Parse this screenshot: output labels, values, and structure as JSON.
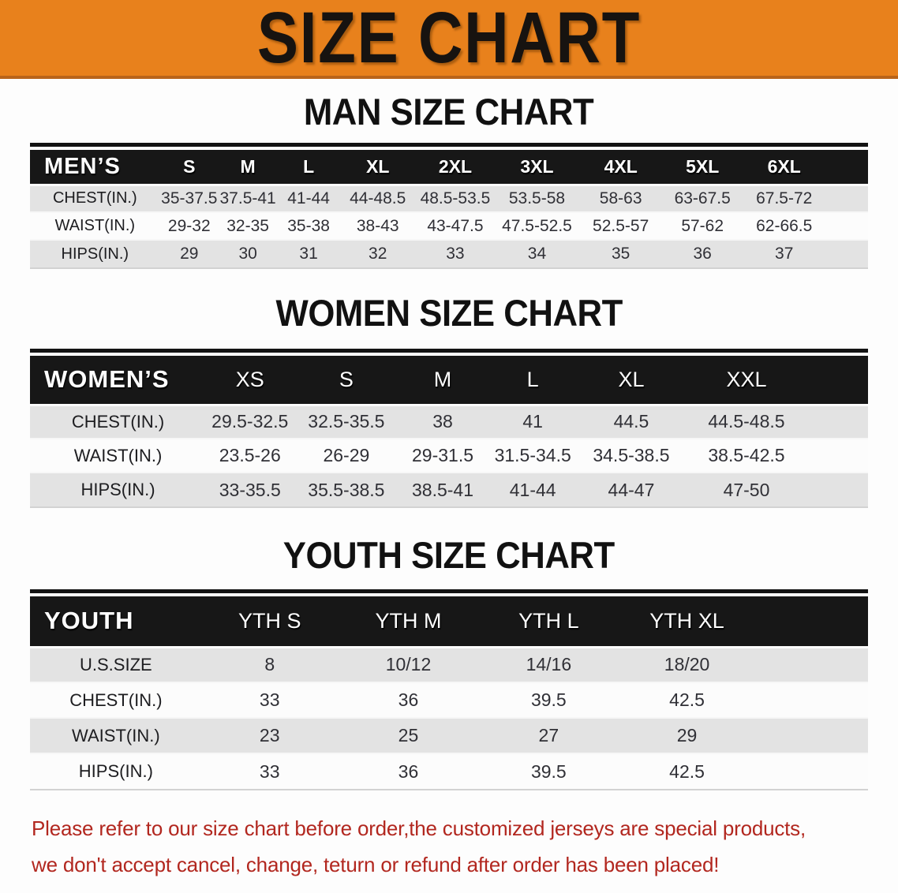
{
  "banner": {
    "title": "SIZE CHART"
  },
  "sections": [
    {
      "id": "men",
      "heading": "MAN SIZE CHART",
      "table": {
        "label": "MEN’S",
        "columns": [
          "S",
          "M",
          "L",
          "XL",
          "2XL",
          "3XL",
          "4XL",
          "5XL",
          "6XL"
        ],
        "rows": [
          {
            "label": "CHEST(IN.)",
            "values": [
              "35-37.5",
              "37.5-41",
              "41-44",
              "44-48.5",
              "48.5-53.5",
              "53.5-58",
              "58-63",
              "63-67.5",
              "67.5-72"
            ]
          },
          {
            "label": "WAIST(IN.)",
            "values": [
              "29-32",
              "32-35",
              "35-38",
              "38-43",
              "43-47.5",
              "47.5-52.5",
              "52.5-57",
              "57-62",
              "62-66.5"
            ]
          },
          {
            "label": "HIPS(IN.)",
            "values": [
              "29",
              "30",
              "31",
              "32",
              "33",
              "34",
              "35",
              "36",
              "37"
            ]
          }
        ]
      }
    },
    {
      "id": "women",
      "heading": "WOMEN SIZE CHART",
      "table": {
        "label": "WOMEN’S",
        "columns": [
          "XS",
          "S",
          "M",
          "L",
          "XL",
          "XXL"
        ],
        "rows": [
          {
            "label": "CHEST(IN.)",
            "values": [
              "29.5-32.5",
              "32.5-35.5",
              "38",
              "41",
              "44.5",
              "44.5-48.5"
            ]
          },
          {
            "label": "WAIST(IN.)",
            "values": [
              "23.5-26",
              "26-29",
              "29-31.5",
              "31.5-34.5",
              "34.5-38.5",
              "38.5-42.5"
            ]
          },
          {
            "label": "HIPS(IN.)",
            "values": [
              "33-35.5",
              "35.5-38.5",
              "38.5-41",
              "41-44",
              "44-47",
              "47-50"
            ]
          }
        ]
      }
    },
    {
      "id": "youth",
      "heading": "YOUTH SIZE CHART",
      "table": {
        "label": "YOUTH",
        "columns": [
          "YTH S",
          "YTH M",
          "YTH L",
          "YTH XL"
        ],
        "rows": [
          {
            "label": "U.S.SIZE",
            "values": [
              "8",
              "10/12",
              "14/16",
              "18/20"
            ]
          },
          {
            "label": "CHEST(IN.)",
            "values": [
              "33",
              "36",
              "39.5",
              "42.5"
            ]
          },
          {
            "label": "WAIST(IN.)",
            "values": [
              "23",
              "25",
              "27",
              "29"
            ]
          },
          {
            "label": "HIPS(IN.)",
            "values": [
              "33",
              "36",
              "39.5",
              "42.5"
            ]
          }
        ]
      }
    }
  ],
  "footer": {
    "line1": "Please refer to our size chart before order,the customized jerseys are special products,",
    "line2": "we don't accept cancel, change, teturn or refund after order has been placed!"
  },
  "colors": {
    "banner_bg": "#e8811c",
    "banner_border": "#b9641a",
    "header_bar": "#171717",
    "row_gray": "#e3e3e3",
    "row_white": "#fcfcfc",
    "notice_red": "#b2271f"
  }
}
